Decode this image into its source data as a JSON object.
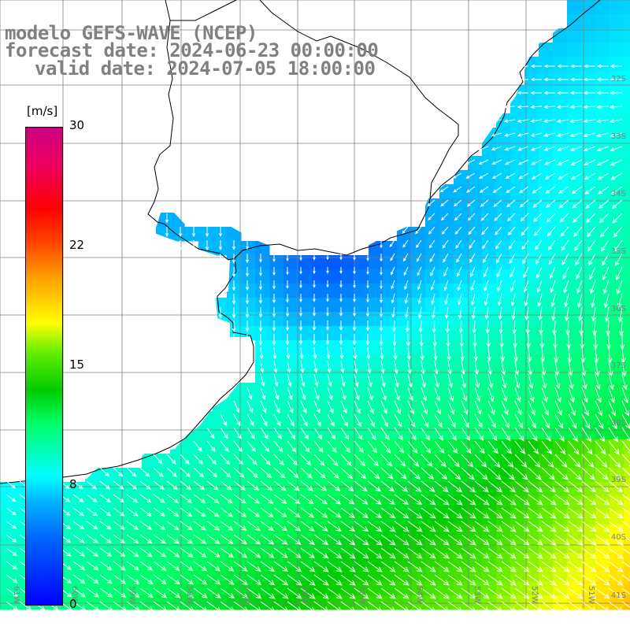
{
  "title": {
    "model": "modelo GEFS-WAVE (NCEP)",
    "forecast": "forecast date: 2024-06-23 00:00:00",
    "valid": "valid date: 2024-07-05 18:00:00"
  },
  "colorbar": {
    "unit": "[m/s]",
    "ticks": [
      "30",
      "22",
      "15",
      "8",
      "0"
    ],
    "min": 0,
    "max": 30,
    "colors": [
      "#0000ff",
      "#00b8ff",
      "#00ffff",
      "#00cc00",
      "#ffff00",
      "#ff4400",
      "#ff0000",
      "#cc0080"
    ]
  },
  "grid": {
    "lat_labels": [
      "32S",
      "33S",
      "34S",
      "35S",
      "36S",
      "37S",
      "38S",
      "39S",
      "40S",
      "41S"
    ],
    "lon_labels": [
      "61W",
      "60W",
      "59W",
      "58W",
      "57W",
      "56W",
      "55W",
      "54W",
      "53W",
      "52W",
      "51W"
    ]
  },
  "colors": {
    "land": "#ffffff",
    "coast": "#000000",
    "grid_line": "#808080",
    "arrow": "#ffffff",
    "label": "#808080"
  },
  "field": {
    "variable": "wind speed",
    "unit": "m/s",
    "range": [
      0,
      30
    ]
  }
}
